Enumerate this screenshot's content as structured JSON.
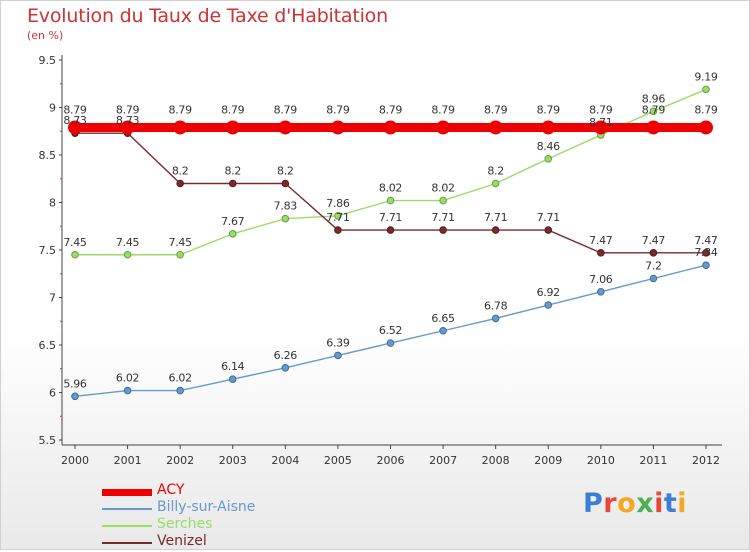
{
  "chart_data": {
    "type": "line",
    "title": "Evolution du Taux de Taxe d'Habitation",
    "subtitle": "(en %)",
    "x": [
      "2000",
      "2001",
      "2002",
      "2003",
      "2004",
      "2005",
      "2006",
      "2007",
      "2008",
      "2009",
      "2010",
      "2011",
      "2012"
    ],
    "ylim": [
      5.5,
      9.5
    ],
    "yticks": [
      "5.5",
      "6",
      "6.5",
      "7",
      "7.5",
      "8",
      "8.5",
      "9",
      "9.5"
    ],
    "grid": false,
    "legend_position": "bottom-left",
    "series": [
      {
        "name": "ACY",
        "color": "#ee0000",
        "values": [
          8.79,
          8.79,
          8.79,
          8.79,
          8.79,
          8.79,
          8.79,
          8.79,
          8.79,
          8.79,
          8.79,
          8.79,
          8.79
        ]
      },
      {
        "name": "Billy-sur-Aisne",
        "color": "#6699cc",
        "values": [
          5.96,
          6.02,
          6.02,
          6.14,
          6.26,
          6.39,
          6.52,
          6.65,
          6.78,
          6.92,
          7.06,
          7.2,
          7.34
        ]
      },
      {
        "name": "Serches",
        "color": "#99dd66",
        "values": [
          7.45,
          7.45,
          7.45,
          7.67,
          7.83,
          7.86,
          8.02,
          8.02,
          8.2,
          8.46,
          8.71,
          8.96,
          9.19
        ]
      },
      {
        "name": "Venizel",
        "color": "#7a2a2a",
        "values": [
          8.73,
          8.73,
          8.2,
          8.2,
          8.2,
          7.71,
          7.71,
          7.71,
          7.71,
          7.71,
          7.47,
          7.47,
          7.47
        ]
      }
    ],
    "data_labels": {
      "ACY": [
        "8.79",
        "8.79",
        "8.79",
        "8.79",
        "8.79",
        "8.79",
        "8.79",
        "8.79",
        "8.79",
        "8.79",
        "8.79",
        "8.79",
        "8.79"
      ],
      "Billy-sur-Aisne": [
        "5.96",
        "6.02",
        "6.02",
        "6.14",
        "6.26",
        "6.39",
        "6.52",
        "6.65",
        "6.78",
        "6.92",
        "7.06",
        "7.2",
        "7.34"
      ],
      "Serches": [
        "7.45",
        "7.45",
        "7.45",
        "7.67",
        "7.83",
        "7.86",
        "8.02",
        "8.02",
        "8.2",
        "8.46",
        "8.71",
        "8.96",
        "9.19"
      ],
      "Venizel": [
        "8.73",
        "8.73",
        "8.2",
        "8.2",
        "8.2",
        "7.71",
        "7.71",
        "7.71",
        "7.71",
        "7.71",
        "7.47",
        "7.47",
        "7.47"
      ]
    }
  },
  "branding": {
    "logo_text": "Proxiti",
    "letter_colors": [
      "#3a7fd5",
      "#e8463a",
      "#f5a623",
      "#4caf50",
      "#e8463a",
      "#3a7fd5",
      "#f5a623"
    ]
  }
}
